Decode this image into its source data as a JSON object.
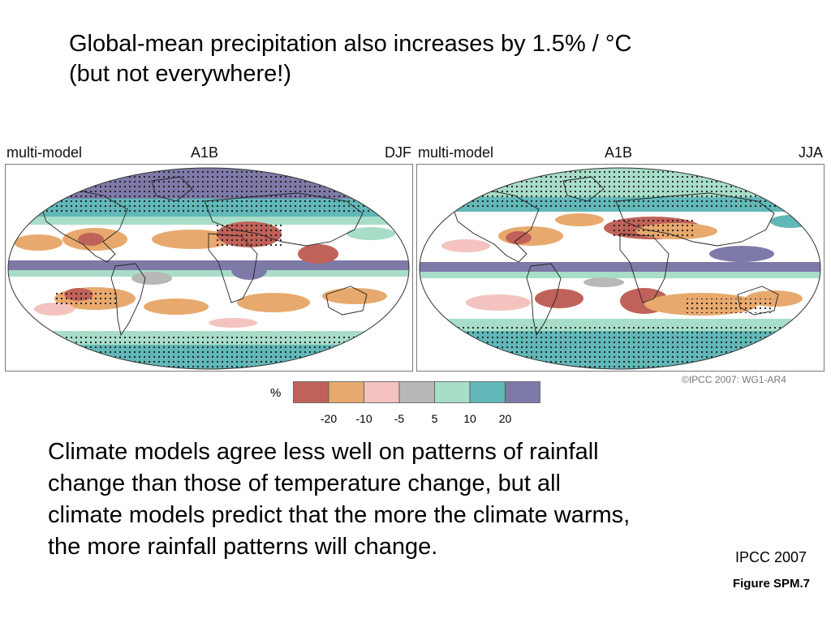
{
  "slide": {
    "title_line1": "Global-mean precipitation also increases by 1.5% / °C",
    "title_line2": "(but not everywhere!)",
    "body": "Climate models agree less well on patterns of rainfall change than those of temperature change, but all climate models predict that the more the climate warms, the more rainfall patterns will change.",
    "source": "IPCC 2007",
    "figure_ref": "Figure SPM.7"
  },
  "maps": [
    {
      "label_left": "multi-model",
      "label_center": "A1B",
      "label_right": "DJF"
    },
    {
      "label_left": "multi-model",
      "label_center": "A1B",
      "label_right": "JJA"
    }
  ],
  "figure": {
    "copyright": "©IPCC  2007: WG1-AR4"
  },
  "legend": {
    "unit": "%",
    "ticks": [
      "-20",
      "-10",
      "-5",
      "5",
      "10",
      "20"
    ],
    "colors": [
      "#c0625a",
      "#e8a96e",
      "#f4c3c0",
      "#b8b8b6",
      "#a8ddc8",
      "#62b8b8",
      "#7e7aa8"
    ]
  }
}
